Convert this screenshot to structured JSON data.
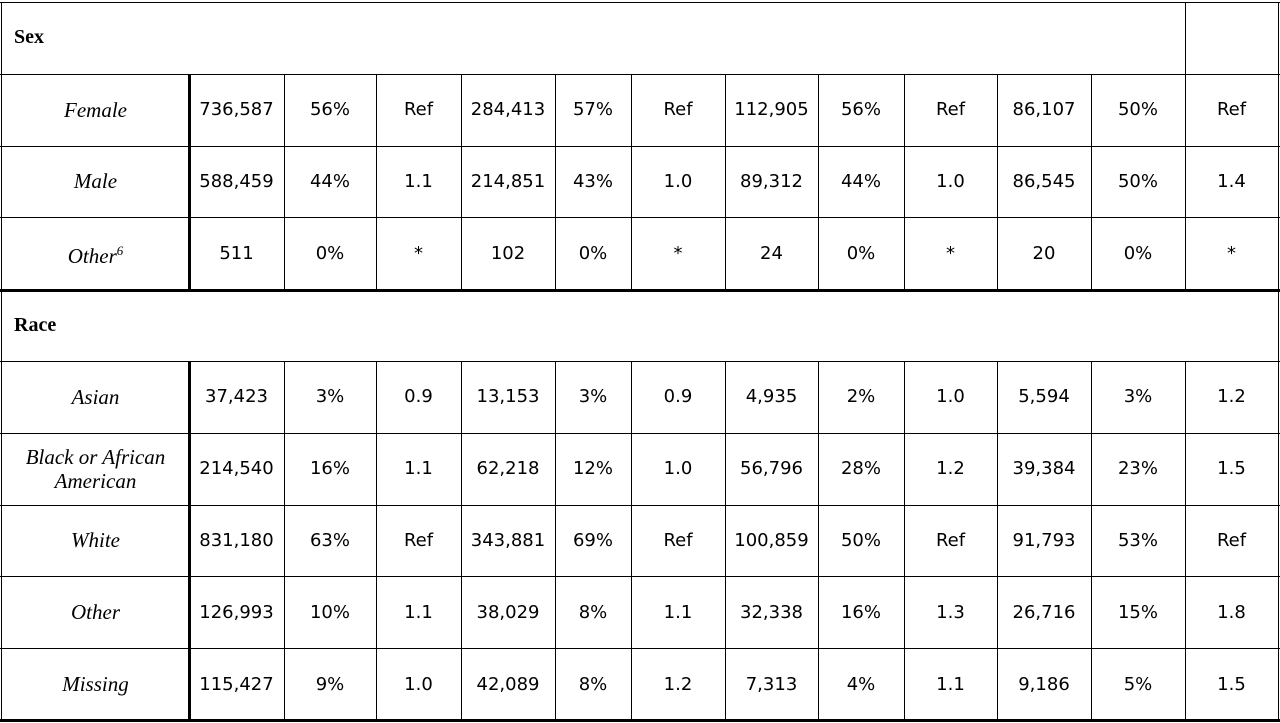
{
  "table": {
    "sections": [
      {
        "title": "Sex",
        "rows": [
          {
            "label": "Female",
            "cells": [
              "736,587",
              "56%",
              "Ref",
              "284,413",
              "57%",
              "Ref",
              "112,905",
              "56%",
              "Ref",
              "86,107",
              "50%",
              "Ref"
            ]
          },
          {
            "label": "Male",
            "cells": [
              "588,459",
              "44%",
              "1.1",
              "214,851",
              "43%",
              "1.0",
              "89,312",
              "44%",
              "1.0",
              "86,545",
              "50%",
              "1.4"
            ]
          },
          {
            "label": "Other",
            "note": "6",
            "cells": [
              "511",
              "0%",
              "*",
              "102",
              "0%",
              "*",
              "24",
              "0%",
              "*",
              "20",
              "0%",
              "*"
            ]
          }
        ]
      },
      {
        "title": "Race",
        "rows": [
          {
            "label": "Asian",
            "cells": [
              "37,423",
              "3%",
              "0.9",
              "13,153",
              "3%",
              "0.9",
              "4,935",
              "2%",
              "1.0",
              "5,594",
              "3%",
              "1.2"
            ]
          },
          {
            "label": "Black or African American",
            "cells": [
              "214,540",
              "16%",
              "1.1",
              "62,218",
              "12%",
              "1.0",
              "56,796",
              "28%",
              "1.2",
              "39,384",
              "23%",
              "1.5"
            ]
          },
          {
            "label": "White",
            "cells": [
              "831,180",
              "63%",
              "Ref",
              "343,881",
              "69%",
              "Ref",
              "100,859",
              "50%",
              "Ref",
              "91,793",
              "53%",
              "Ref"
            ]
          },
          {
            "label": "Other",
            "cells": [
              "126,993",
              "10%",
              "1.1",
              "38,029",
              "8%",
              "1.1",
              "32,338",
              "16%",
              "1.3",
              "26,716",
              "15%",
              "1.8"
            ]
          },
          {
            "label": "Missing",
            "cells": [
              "115,427",
              "9%",
              "1.0",
              "42,089",
              "8%",
              "1.2",
              "7,313",
              "4%",
              "1.1",
              "9,186",
              "5%",
              "1.5"
            ]
          }
        ]
      }
    ]
  }
}
